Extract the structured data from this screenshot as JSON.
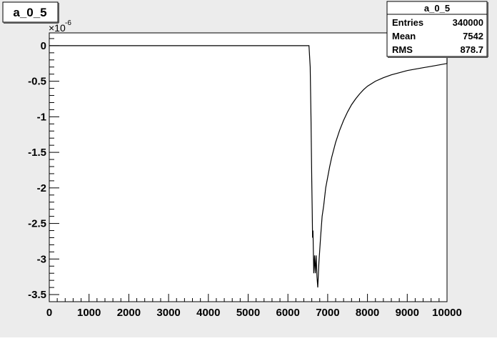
{
  "hist_title": "a_0_5",
  "stats": {
    "title": "a_0_5",
    "rows": [
      {
        "label": "Entries",
        "value": "340000"
      },
      {
        "label": "Mean",
        "value": "7542"
      },
      {
        "label": "RMS",
        "value": "878.7"
      }
    ]
  },
  "chart_data": {
    "type": "line",
    "title": "a_0_5",
    "xlabel": "",
    "ylabel": "",
    "xlim": [
      0,
      10000
    ],
    "ylim": [
      -3.6e-06,
      1.8e-07
    ],
    "y_multiplier_label": "×10",
    "y_multiplier_exp": "-6",
    "x_ticks": [
      0,
      1000,
      2000,
      3000,
      4000,
      5000,
      6000,
      7000,
      8000,
      9000,
      10000
    ],
    "x_tick_labels": [
      "0",
      "1000",
      "2000",
      "3000",
      "4000",
      "5000",
      "6000",
      "7000",
      "8000",
      "9000",
      "10000"
    ],
    "y_ticks": [
      0,
      -0.5,
      -1,
      -1.5,
      -2,
      -2.5,
      -3,
      -3.5
    ],
    "y_tick_labels": [
      "0",
      "-0.5",
      "-1",
      "-1.5",
      "-2",
      "-2.5",
      "-3",
      "-3.5"
    ],
    "series": [
      {
        "x": [
          0,
          6530,
          6560,
          6580,
          6600,
          6610,
          6620,
          6630,
          6650,
          6670,
          6690,
          6710,
          6730,
          6750,
          6780,
          6820,
          6860,
          6900,
          6950,
          7000,
          7050,
          7100,
          7200,
          7300,
          7400,
          7500,
          7600,
          7700,
          7800,
          7900,
          8000,
          8200,
          8400,
          8600,
          8800,
          9000,
          9200,
          9400,
          9600,
          9800,
          10000
        ],
        "y": [
          0,
          0,
          -0.3,
          -1.0,
          -1.9,
          -2.3,
          -2.7,
          -2.6,
          -3.2,
          -2.95,
          -3.2,
          -2.95,
          -3.25,
          -3.4,
          -3.05,
          -2.7,
          -2.4,
          -2.25,
          -2.0,
          -1.85,
          -1.7,
          -1.57,
          -1.36,
          -1.19,
          -1.05,
          -0.93,
          -0.83,
          -0.75,
          -0.68,
          -0.62,
          -0.57,
          -0.5,
          -0.45,
          -0.41,
          -0.38,
          -0.35,
          -0.33,
          -0.31,
          -0.29,
          -0.27,
          -0.25
        ]
      }
    ],
    "grid": false,
    "legend": "none"
  }
}
